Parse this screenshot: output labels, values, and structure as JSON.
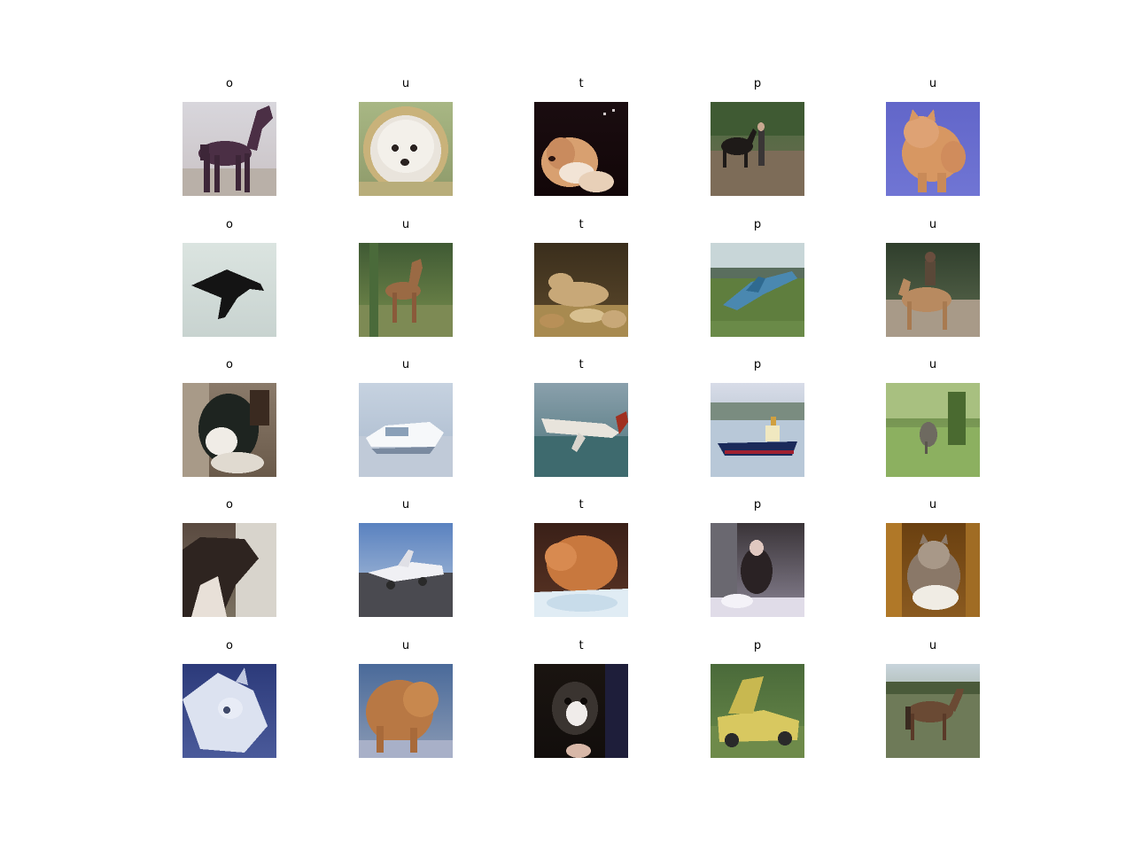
{
  "figure": {
    "column_titles": [
      "o",
      "u",
      "t",
      "p",
      "u"
    ],
    "grid": [
      [
        {
          "title": "o",
          "subject": "horse"
        },
        {
          "title": "u",
          "subject": "dog"
        },
        {
          "title": "t",
          "subject": "dog"
        },
        {
          "title": "p",
          "subject": "horse"
        },
        {
          "title": "u",
          "subject": "cat"
        }
      ],
      [
        {
          "title": "o",
          "subject": "airplane"
        },
        {
          "title": "u",
          "subject": "deer"
        },
        {
          "title": "t",
          "subject": "frog"
        },
        {
          "title": "p",
          "subject": "airplane"
        },
        {
          "title": "u",
          "subject": "horse"
        }
      ],
      [
        {
          "title": "o",
          "subject": "dog"
        },
        {
          "title": "u",
          "subject": "ship"
        },
        {
          "title": "t",
          "subject": "airplane"
        },
        {
          "title": "p",
          "subject": "ship"
        },
        {
          "title": "u",
          "subject": "bird"
        }
      ],
      [
        {
          "title": "o",
          "subject": "horse"
        },
        {
          "title": "u",
          "subject": "airplane"
        },
        {
          "title": "t",
          "subject": "cat"
        },
        {
          "title": "p",
          "subject": "dog"
        },
        {
          "title": "u",
          "subject": "cat"
        }
      ],
      [
        {
          "title": "o",
          "subject": "airplane"
        },
        {
          "title": "u",
          "subject": "cat"
        },
        {
          "title": "t",
          "subject": "dog"
        },
        {
          "title": "p",
          "subject": "automobile"
        },
        {
          "title": "u",
          "subject": "horse"
        }
      ]
    ]
  }
}
